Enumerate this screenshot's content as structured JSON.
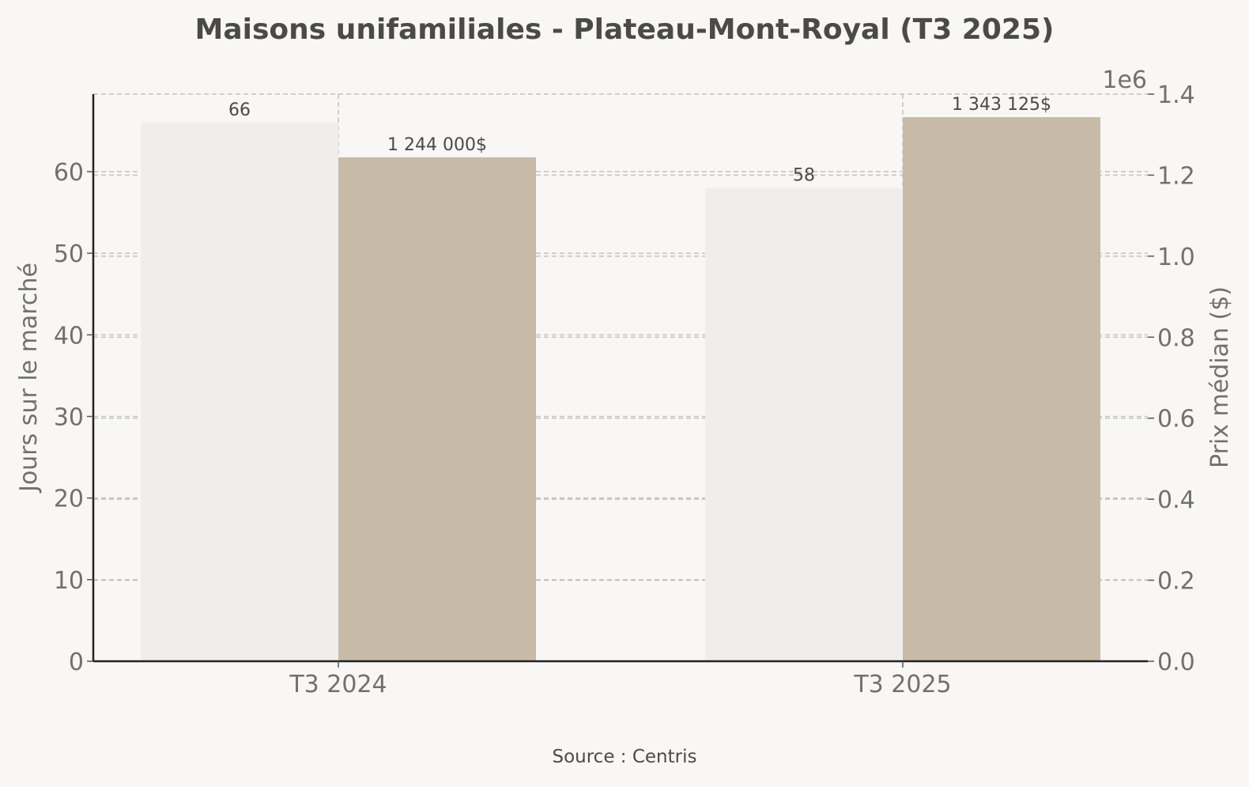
{
  "chart_data": {
    "type": "bar",
    "title": "Maisons unifamiliales - Plateau-Mont-Royal (T3 2025)",
    "categories": [
      "T3 2024",
      "T3 2025"
    ],
    "series": [
      {
        "axis": "left",
        "color": "#efeeec",
        "values": [
          66,
          58
        ],
        "value_labels": [
          "66",
          "58"
        ]
      },
      {
        "axis": "right",
        "color": "#c7baa7",
        "values": [
          1244000,
          1343125
        ],
        "value_labels": [
          "1 244 000$",
          "1 343 125$"
        ]
      }
    ],
    "y_left": {
      "label": "Jours sur le marché",
      "ylim": [
        0,
        69.5
      ],
      "ticks": [
        0,
        10,
        20,
        30,
        40,
        50,
        60
      ],
      "tick_labels": [
        "0",
        "10",
        "20",
        "30",
        "40",
        "50",
        "60"
      ]
    },
    "y_right": {
      "label": "Prix médian ($)",
      "ylim": [
        0,
        1400000
      ],
      "ticks": [
        0,
        200000,
        400000,
        600000,
        800000,
        1000000,
        1200000,
        1400000
      ],
      "tick_labels": [
        "0.0",
        "0.2",
        "0.4",
        "0.6",
        "0.8",
        "1.0",
        "1.2",
        "1.4"
      ],
      "offset_text": "1e6"
    },
    "grid": true,
    "source": "Source : Centris"
  }
}
